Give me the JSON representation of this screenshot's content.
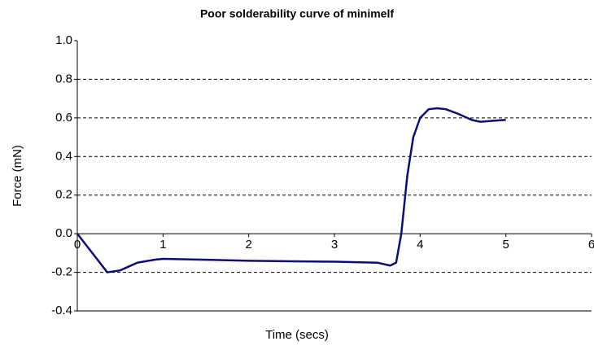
{
  "chart_data": {
    "type": "line",
    "title": "Poor solderability curve of minimelf",
    "x_label": "Time (secs)",
    "y_label": "Force (mN)",
    "x": [
      0,
      0.35,
      0.5,
      0.7,
      0.9,
      1,
      1.5,
      2,
      2.5,
      3,
      3.5,
      3.65,
      3.72,
      3.78,
      3.85,
      3.92,
      4,
      4.1,
      4.2,
      4.3,
      4.45,
      4.6,
      4.7,
      4.85,
      5
    ],
    "series": [
      {
        "color": "#0c0c7c",
        "values": [
          0,
          -0.2,
          -0.19,
          -0.15,
          -0.135,
          -0.13,
          -0.135,
          -0.14,
          -0.143,
          -0.145,
          -0.15,
          -0.165,
          -0.15,
          0,
          0.3,
          0.5,
          0.6,
          0.645,
          0.65,
          0.645,
          0.62,
          0.59,
          0.58,
          0.585,
          0.59
        ]
      }
    ],
    "xlim": [
      0,
      6
    ],
    "xticks": [
      0,
      1,
      2,
      3,
      4,
      5,
      6
    ],
    "ylim": [
      -0.4,
      1
    ],
    "yticks": [
      {
        "value": 1,
        "label": "1.0"
      },
      0.8,
      0.6,
      0.4,
      0.2,
      {
        "value": 0,
        "label": "0.0"
      },
      -0.2,
      -0.4
    ],
    "grid": true
  }
}
